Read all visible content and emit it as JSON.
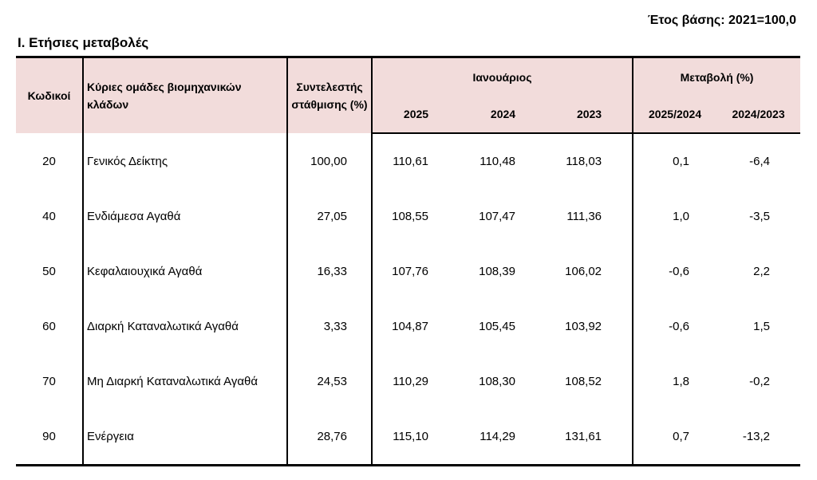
{
  "base_year": "Έτος βάσης: 2021=100,0",
  "section_title": "Ι. Ετήσιες μεταβολές",
  "table": {
    "headers": {
      "code": "Κωδικοί",
      "group": "Κύριες ομάδες βιομηχανικών κλάδων",
      "weight": "Συντελεστής στάθμισης (%)",
      "january": "Ιανουάριος",
      "change": "Μεταβολή (%)",
      "years": [
        "2025",
        "2024",
        "2023"
      ],
      "changes": [
        "2025/2024",
        "2024/2023"
      ]
    },
    "rows": [
      {
        "code": "20",
        "name": "Γενικός Δείκτης",
        "weight": "100,00",
        "y2025": "110,61",
        "y2024": "110,48",
        "y2023": "118,03",
        "ch_2025_2024": "0,1",
        "ch_2024_2023": "-6,4"
      },
      {
        "code": "40",
        "name": "Ενδιάμεσα Αγαθά",
        "weight": "27,05",
        "y2025": "108,55",
        "y2024": "107,47",
        "y2023": "111,36",
        "ch_2025_2024": "1,0",
        "ch_2024_2023": "-3,5"
      },
      {
        "code": "50",
        "name": "Κεφαλαιουχικά Αγαθά",
        "weight": "16,33",
        "y2025": "107,76",
        "y2024": "108,39",
        "y2023": "106,02",
        "ch_2025_2024": "-0,6",
        "ch_2024_2023": "2,2"
      },
      {
        "code": "60",
        "name": "Διαρκή Καταναλωτικά Αγαθά",
        "weight": "3,33",
        "y2025": "104,87",
        "y2024": "105,45",
        "y2023": "103,92",
        "ch_2025_2024": "-0,6",
        "ch_2024_2023": "1,5"
      },
      {
        "code": "70",
        "name": "Μη Διαρκή Καταναλωτικά Αγαθά",
        "weight": "24,53",
        "y2025": "110,29",
        "y2024": "108,30",
        "y2023": "108,52",
        "ch_2025_2024": "1,8",
        "ch_2024_2023": "-0,2"
      },
      {
        "code": "90",
        "name": "Ενέργεια",
        "weight": "28,76",
        "y2025": "115,10",
        "y2024": "114,29",
        "y2023": "131,61",
        "ch_2025_2024": "0,7",
        "ch_2024_2023": "-13,2"
      }
    ]
  },
  "colors": {
    "header_background": "#f2dcdb",
    "rule": "#000000"
  }
}
